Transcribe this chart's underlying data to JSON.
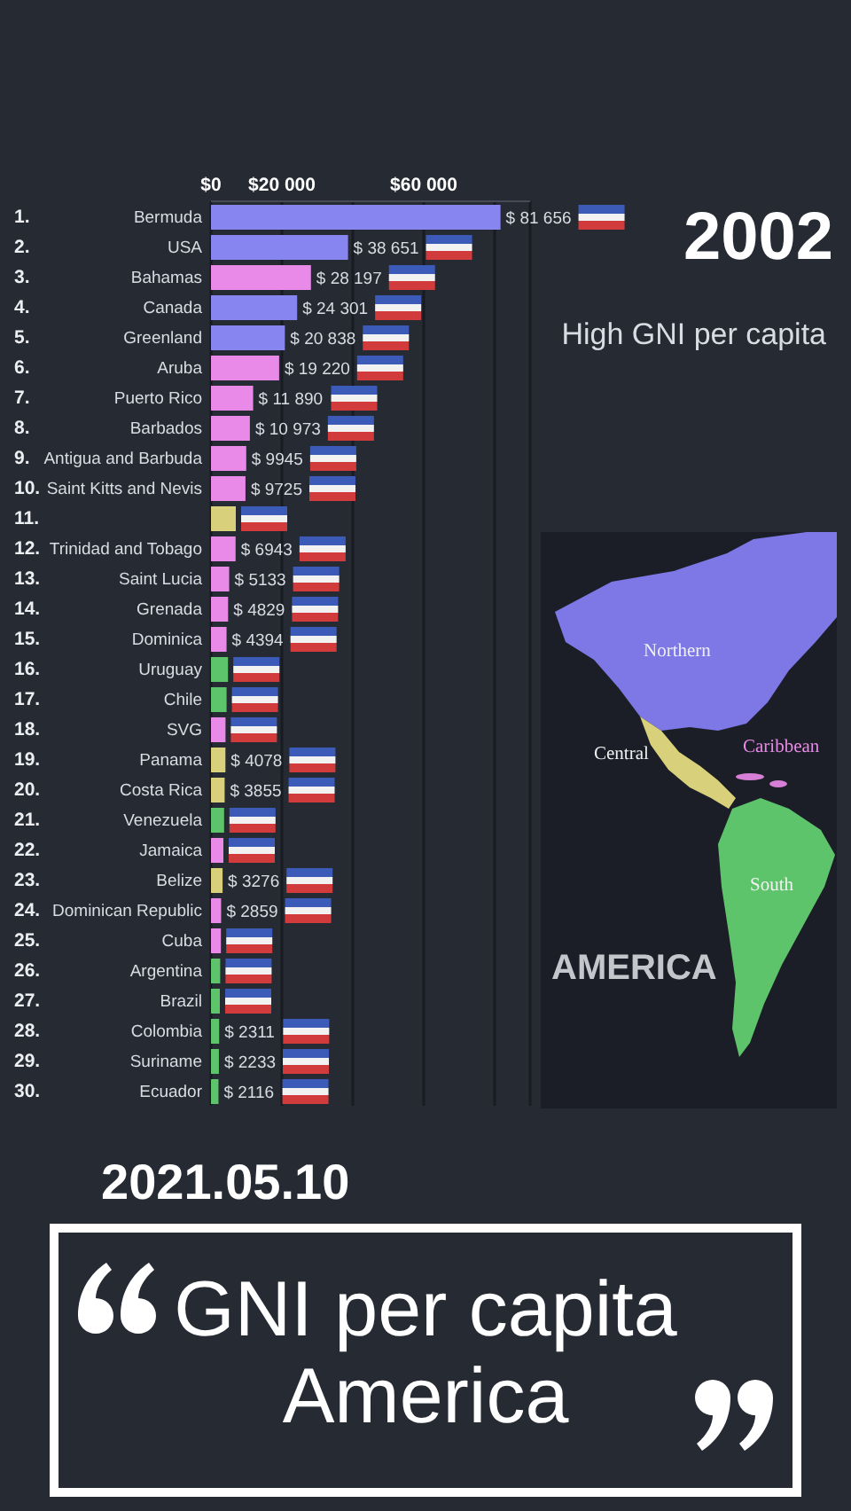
{
  "chart_data": {
    "type": "bar",
    "orientation": "horizontal",
    "title": "GNI per capita America",
    "categories": [
      "Bermuda",
      "USA",
      "Bahamas",
      "Canada",
      "Greenland",
      "Aruba",
      "Puerto Rico",
      "Barbados",
      "Antigua and Barbuda",
      "Saint Kitts and Nevis",
      null,
      "Trinidad and Tobago",
      "Saint Lucia",
      "Grenada",
      "Dominica",
      "Uruguay",
      "Chile",
      "SVG",
      "Panama",
      "Costa Rica",
      "Venezuela",
      "Jamaica",
      "Belize",
      "Dominican Republic",
      "Cuba",
      "Argentina",
      "Brazil",
      "Colombia",
      "Suriname",
      "Ecuador"
    ],
    "values": [
      81656,
      38651,
      28197,
      24301,
      20838,
      19220,
      11890,
      10973,
      9945,
      9725,
      7000,
      6943,
      5133,
      4829,
      4394,
      4800,
      4400,
      4100,
      4078,
      3855,
      3700,
      3500,
      3276,
      2859,
      2800,
      2600,
      2500,
      2311,
      2233,
      2116
    ],
    "value_labels": [
      "$ 81 656",
      "$ 38 651",
      "$ 28 197",
      "$ 24 301",
      "$ 20 838",
      "$ 19 220",
      "$ 11 890",
      "$ 10 973",
      "$ 9945",
      "$ 9725",
      null,
      "$ 6943",
      "$ 5133",
      "$ 4829",
      "$ 4394",
      null,
      null,
      null,
      "$ 4078",
      "$ 3855",
      null,
      null,
      "$ 3276",
      "$ 2859",
      null,
      null,
      null,
      "$ 2311",
      "$ 2233",
      "$ 2116"
    ],
    "colors": [
      "#8785ef",
      "#8785ef",
      "#e98ae9",
      "#8785ef",
      "#8785ef",
      "#e98ae9",
      "#e98ae9",
      "#e98ae9",
      "#e98ae9",
      "#e98ae9",
      "#d8d07a",
      "#e98ae9",
      "#e98ae9",
      "#e98ae9",
      "#e98ae9",
      "#5ec46b",
      "#5ec46b",
      "#e98ae9",
      "#d8d07a",
      "#d8d07a",
      "#5ec46b",
      "#e98ae9",
      "#d8d07a",
      "#e98ae9",
      "#e98ae9",
      "#5ec46b",
      "#5ec46b",
      "#5ec46b",
      "#5ec46b",
      "#5ec46b"
    ],
    "xlim": [
      0,
      90000
    ],
    "xticks": [
      {
        "value": 0,
        "label": "$0"
      },
      {
        "value": 20000,
        "label": "$20 000"
      },
      {
        "value": 40000,
        "label": null
      },
      {
        "value": 60000,
        "label": "$60 000"
      },
      {
        "value": 80000,
        "label": null
      }
    ],
    "grid": "x",
    "annotations": [
      "1.",
      "2.",
      "3.",
      "4.",
      "5.",
      "6.",
      "7.",
      "8.",
      "9.",
      "10.",
      "11.",
      "12.",
      "13.",
      "14.",
      "15.",
      "16.",
      "17.",
      "18.",
      "19.",
      "20.",
      "21.",
      "22.",
      "23.",
      "24.",
      "25.",
      "26.",
      "27.",
      "28.",
      "29.",
      "30.",
      "2002",
      "High GNI per capita",
      "Northern",
      "Central",
      "Caribbean",
      "South",
      "AMERICA",
      "2021.05.10"
    ]
  }
}
